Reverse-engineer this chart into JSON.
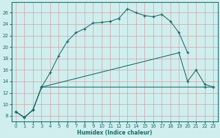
{
  "xlabel": "Humidex (Indice chaleur)",
  "bg_color": "#d0eeee",
  "line_color": "#1a6b6b",
  "grid_color": "#d4a0a0",
  "xlim": [
    -0.5,
    23.5
  ],
  "ylim": [
    7.0,
    27.8
  ],
  "xticks": [
    0,
    1,
    2,
    3,
    4,
    5,
    6,
    7,
    8,
    9,
    10,
    11,
    12,
    13,
    14,
    15,
    16,
    17,
    18,
    19,
    20,
    21,
    22,
    23
  ],
  "yticks": [
    8,
    10,
    12,
    14,
    16,
    18,
    20,
    22,
    24,
    26
  ],
  "line1_x": [
    0,
    1,
    2,
    3,
    4,
    5,
    6,
    7,
    8,
    9,
    10,
    11,
    12,
    13,
    14,
    15,
    16,
    17,
    18,
    19,
    20
  ],
  "line1_y": [
    8.7,
    7.7,
    9.0,
    13.0,
    15.5,
    18.5,
    21.0,
    22.5,
    23.2,
    24.2,
    24.3,
    24.5,
    25.0,
    26.7,
    26.0,
    25.5,
    25.3,
    25.7,
    24.5,
    22.5,
    19.0
  ],
  "line2_x": [
    0,
    1,
    2,
    3,
    22,
    23
  ],
  "line2_y": [
    8.7,
    7.7,
    9.0,
    13.0,
    13.0,
    13.0
  ],
  "line3_x": [
    0,
    1,
    2,
    3,
    19,
    20,
    21,
    22,
    23
  ],
  "line3_y": [
    8.7,
    7.7,
    9.0,
    13.0,
    19.0,
    14.0,
    16.0,
    13.5,
    13.0
  ]
}
